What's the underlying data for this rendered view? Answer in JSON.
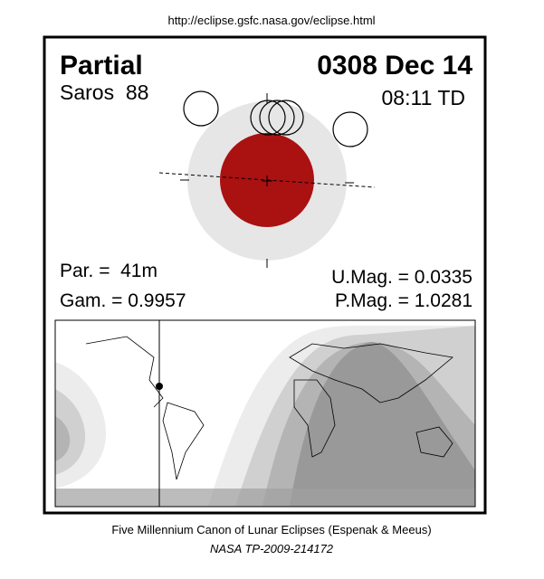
{
  "header": {
    "url": "http://eclipse.gsfc.nasa.gov/eclipse.html"
  },
  "eclipse": {
    "type": "Partial",
    "date": "0308 Dec 14",
    "saros": "Saros  88",
    "time": "08:11 TD",
    "par": "Par. =  41m",
    "gam": "Gam. = 0.9957",
    "umag": "U.Mag. = 0.0335",
    "pmag": "P.Mag. = 1.0281"
  },
  "footer": {
    "line1": "Five Millennium Canon of Lunar Eclipses (Espenak & Meeus)",
    "line2": "NASA TP-2009-214172"
  }
}
